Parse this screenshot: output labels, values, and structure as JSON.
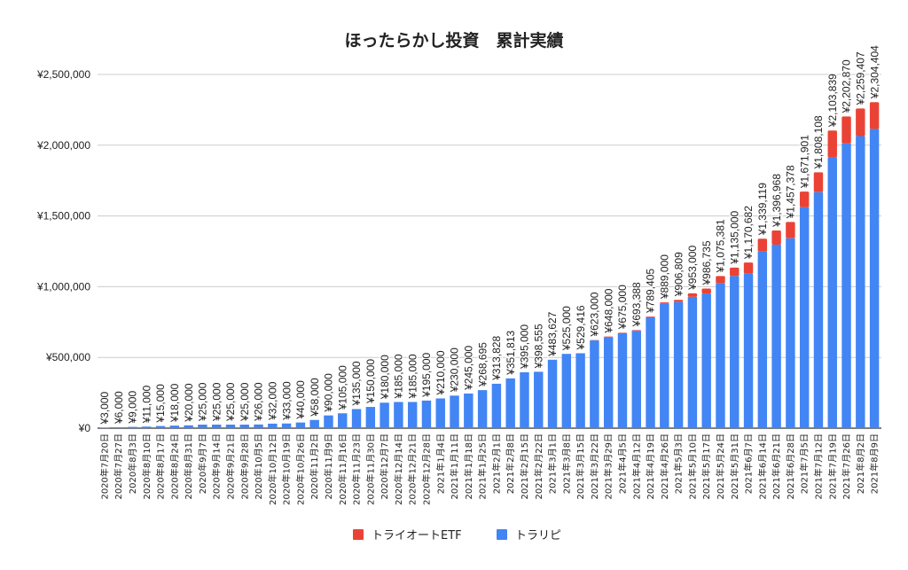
{
  "chart_data": {
    "type": "bar",
    "stacked": true,
    "title": "ほったらかし投資　累計実績",
    "xlabel": "",
    "ylabel": "",
    "ylim": [
      0,
      2500000
    ],
    "yticks": [
      "¥0",
      "¥500,000",
      "¥1,000,000",
      "¥1,500,000",
      "¥2,000,000",
      "¥2,500,000"
    ],
    "ytick_values": [
      0,
      500000,
      1000000,
      1500000,
      2000000,
      2500000
    ],
    "grid": true,
    "legend_position": "bottom",
    "categories": [
      "2020年7月20日",
      "2020年7月27日",
      "2020年8月3日",
      "2020年8月10日",
      "2020年8月17日",
      "2020年8月24日",
      "2020年8月31日",
      "2020年9月7日",
      "2020年9月14日",
      "2020年9月21日",
      "2020年9月28日",
      "2020年10月5日",
      "2020年10月12日",
      "2020年10月19日",
      "2020年10月26日",
      "2020年11月2日",
      "2020年11月9日",
      "2020年11月16日",
      "2020年11月23日",
      "2020年11月30日",
      "2020年12月7日",
      "2020年12月14日",
      "2020年12月21日",
      "2020年12月28日",
      "2021年1月4日",
      "2021年1月11日",
      "2021年1月18日",
      "2021年1月25日",
      "2021年2月1日",
      "2021年2月8日",
      "2021年2月15日",
      "2021年2月22日",
      "2021年3月1日",
      "2021年3月8日",
      "2021年3月15日",
      "2021年3月22日",
      "2021年3月29日",
      "2021年4月5日",
      "2021年4月12日",
      "2021年4月19日",
      "2021年4月26日",
      "2021年5月3日",
      "2021年5月10日",
      "2021年5月17日",
      "2021年5月24日",
      "2021年5月31日",
      "2021年6月7日",
      "2021年6月14日",
      "2021年6月21日",
      "2021年6月28日",
      "2021年7月5日",
      "2021年7月12日",
      "2021年7月19日",
      "2021年7月26日",
      "2021年8月2日",
      "2021年8月9日"
    ],
    "series": [
      {
        "name": "トライオートETF",
        "color": "#ea4335",
        "values": [
          0,
          0,
          0,
          0,
          0,
          0,
          0,
          0,
          0,
          0,
          0,
          0,
          0,
          0,
          0,
          0,
          0,
          0,
          0,
          0,
          0,
          0,
          0,
          0,
          0,
          0,
          0,
          0,
          0,
          0,
          0,
          0,
          0,
          0,
          0,
          3000,
          5000,
          3000,
          5000,
          5000,
          8000,
          15000,
          25000,
          35000,
          50000,
          60000,
          80000,
          90000,
          100000,
          115000,
          110000,
          140000,
          190000,
          190000,
          195000,
          190000
        ]
      },
      {
        "name": "トラリピ",
        "color": "#4285f4",
        "values": [
          3000,
          6000,
          9000,
          11000,
          15000,
          18000,
          20000,
          25000,
          25000,
          25000,
          25000,
          26000,
          32000,
          33000,
          40000,
          58000,
          90000,
          105000,
          135000,
          150000,
          180000,
          185000,
          185000,
          195000,
          210000,
          230000,
          245000,
          268695,
          313828,
          351813,
          395000,
          398555,
          483627,
          525000,
          529416,
          620000,
          643000,
          672000,
          688388,
          784405,
          881000,
          891809,
          928000,
          951735,
          1025381,
          1075000,
          1090682,
          1249119,
          1296968,
          1342378,
          1561901,
          1668108,
          1913839,
          2012870,
          2064407,
          2114404
        ]
      }
    ],
    "totals": [
      "¥3,000",
      "¥6,000",
      "¥9,000",
      "¥11,000",
      "¥15,000",
      "¥18,000",
      "¥20,000",
      "¥25,000",
      "¥25,000",
      "¥25,000",
      "¥25,000",
      "¥26,000",
      "¥32,000",
      "¥33,000",
      "¥40,000",
      "¥58,000",
      "¥90,000",
      "¥105,000",
      "¥135,000",
      "¥150,000",
      "¥180,000",
      "¥185,000",
      "¥185,000",
      "¥195,000",
      "¥210,000",
      "¥230,000",
      "¥245,000",
      "¥268,695",
      "¥313,828",
      "¥351,813",
      "¥395,000",
      "¥398,555",
      "¥483,627",
      "¥525,000",
      "¥529,416",
      "¥623,000",
      "¥648,000",
      "¥675,000",
      "¥693,388",
      "¥789,405",
      "¥889,000",
      "¥906,809",
      "¥953,000",
      "¥986,735",
      "¥1,075,381",
      "¥1,135,000",
      "¥1,170,682",
      "¥1,339,119",
      "¥1,396,968",
      "¥1,457,378",
      "¥1,671,901",
      "¥1,808,108",
      "¥2,103,839",
      "¥2,202,870",
      "¥2,259,407",
      "¥2,304,404"
    ]
  }
}
